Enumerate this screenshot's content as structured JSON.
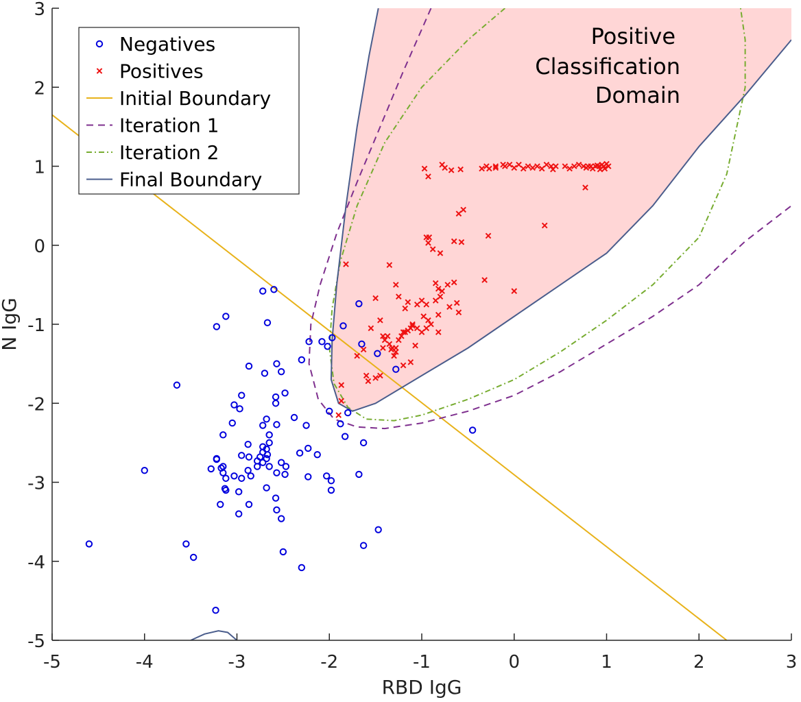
{
  "chart_data": {
    "type": "scatter",
    "xlabel": "RBD IgG",
    "ylabel": "N IgG",
    "xlim": [
      -5,
      3
    ],
    "ylim": [
      -5,
      3
    ],
    "x_ticks": [
      -5,
      -4,
      -3,
      -2,
      -1,
      0,
      1,
      2,
      3
    ],
    "y_ticks": [
      -5,
      -4,
      -3,
      -2,
      -1,
      0,
      1,
      2,
      3
    ],
    "grid": false,
    "legend_position": "top-left",
    "colors": {
      "negatives": "#0000dd",
      "positives": "#ee1111",
      "initial": "#e8b21a",
      "iteration1": "#7e2f8e",
      "iteration2": "#77ac30",
      "final": "#4a5d8c",
      "domain_fill": "#ffd6d6"
    },
    "annotation": [
      "Positive",
      "Classification",
      "Domain"
    ],
    "series": [
      {
        "name": "Negatives",
        "marker": "circle",
        "points": [
          [
            -4.6,
            -3.78
          ],
          [
            -4.0,
            -2.85
          ],
          [
            -3.65,
            -1.77
          ],
          [
            -3.55,
            -3.78
          ],
          [
            -3.47,
            -3.95
          ],
          [
            -3.23,
            -4.62
          ],
          [
            -3.22,
            -1.03
          ],
          [
            -3.12,
            -0.9
          ],
          [
            -2.72,
            -0.58
          ],
          [
            -2.6,
            -0.56
          ],
          [
            -2.67,
            -0.98
          ],
          [
            -3.15,
            -2.4
          ],
          [
            -3.05,
            -2.25
          ],
          [
            -3.03,
            -2.02
          ],
          [
            -2.97,
            -2.07
          ],
          [
            -2.95,
            -1.9
          ],
          [
            -2.87,
            -1.53
          ],
          [
            -2.7,
            -1.62
          ],
          [
            -2.57,
            -1.5
          ],
          [
            -2.52,
            -1.6
          ],
          [
            -2.58,
            -1.92
          ],
          [
            -2.58,
            -2.0
          ],
          [
            -2.48,
            -1.87
          ],
          [
            -2.68,
            -2.2
          ],
          [
            -2.72,
            -2.28
          ],
          [
            -2.57,
            -2.27
          ],
          [
            -2.65,
            -2.4
          ],
          [
            -2.88,
            -2.52
          ],
          [
            -2.72,
            -2.55
          ],
          [
            -2.68,
            -2.58
          ],
          [
            -2.72,
            -2.62
          ],
          [
            -2.68,
            -2.7
          ],
          [
            -2.72,
            -2.75
          ],
          [
            -2.78,
            -2.8
          ],
          [
            -2.75,
            -2.68
          ],
          [
            -2.67,
            -2.65
          ],
          [
            -2.65,
            -2.5
          ],
          [
            -2.95,
            -2.66
          ],
          [
            -2.87,
            -2.68
          ],
          [
            -2.88,
            -2.85
          ],
          [
            -2.85,
            -2.92
          ],
          [
            -2.95,
            -2.95
          ],
          [
            -3.03,
            -2.92
          ],
          [
            -3.12,
            -2.95
          ],
          [
            -3.15,
            -2.88
          ],
          [
            -3.15,
            -2.8
          ],
          [
            -3.17,
            -2.82
          ],
          [
            -3.22,
            -2.7
          ],
          [
            -3.28,
            -2.83
          ],
          [
            -3.12,
            -3.1
          ],
          [
            -3.13,
            -3.08
          ],
          [
            -2.98,
            -3.12
          ],
          [
            -2.68,
            -3.07
          ],
          [
            -2.58,
            -3.2
          ],
          [
            -2.87,
            -3.28
          ],
          [
            -3.18,
            -3.28
          ],
          [
            -2.98,
            -3.4
          ],
          [
            -2.57,
            -3.35
          ],
          [
            -2.52,
            -2.75
          ],
          [
            -2.57,
            -2.88
          ],
          [
            -2.47,
            -2.8
          ],
          [
            -2.48,
            -2.9
          ],
          [
            -2.38,
            -2.18
          ],
          [
            -2.32,
            -2.63
          ],
          [
            -2.25,
            -2.28
          ],
          [
            -2.23,
            -2.57
          ],
          [
            -2.23,
            -2.93
          ],
          [
            -2.13,
            -2.65
          ],
          [
            -2.03,
            -2.92
          ],
          [
            -1.98,
            -2.98
          ],
          [
            -1.98,
            -3.1
          ],
          [
            -2.0,
            -2.1
          ],
          [
            -1.88,
            -2.26
          ],
          [
            -1.83,
            -2.42
          ],
          [
            -1.68,
            -2.9
          ],
          [
            -1.63,
            -2.5
          ],
          [
            -1.63,
            -3.8
          ],
          [
            -1.47,
            -3.6
          ],
          [
            -2.5,
            -3.88
          ],
          [
            -2.52,
            -3.46
          ],
          [
            -2.3,
            -4.08
          ],
          [
            -2.3,
            -1.45
          ],
          [
            -2.22,
            -1.22
          ],
          [
            -2.08,
            -1.22
          ],
          [
            -2.02,
            -1.28
          ],
          [
            -1.97,
            -1.17
          ],
          [
            -1.85,
            -1.02
          ],
          [
            -1.68,
            -0.74
          ],
          [
            -1.65,
            -1.25
          ],
          [
            -1.48,
            -1.37
          ],
          [
            -1.28,
            -1.57
          ],
          [
            -1.8,
            -2.12
          ],
          [
            -0.45,
            -2.34
          ],
          [
            -3.22,
            -2.71
          ],
          [
            -2.78,
            -2.73
          ],
          [
            -2.65,
            -2.8
          ]
        ]
      },
      {
        "name": "Positives",
        "marker": "cross",
        "points": [
          [
            -1.82,
            -0.24
          ],
          [
            -1.87,
            -1.77
          ],
          [
            -1.87,
            -1.97
          ],
          [
            -1.9,
            -2.15
          ],
          [
            -1.7,
            -1.4
          ],
          [
            -1.63,
            -1.32
          ],
          [
            -1.6,
            -1.65
          ],
          [
            -1.55,
            -1.05
          ],
          [
            -1.58,
            -1.72
          ],
          [
            -1.5,
            -1.68
          ],
          [
            -1.45,
            -1.65
          ],
          [
            -1.45,
            -0.95
          ],
          [
            -1.5,
            -0.67
          ],
          [
            -1.42,
            -1.3
          ],
          [
            -1.4,
            -1.2
          ],
          [
            -1.37,
            -1.15
          ],
          [
            -1.35,
            -1.25
          ],
          [
            -1.32,
            -1.3
          ],
          [
            -1.3,
            -1.4
          ],
          [
            -1.28,
            -1.35
          ],
          [
            -1.25,
            -1.2
          ],
          [
            -1.22,
            -1.15
          ],
          [
            -1.2,
            -1.1
          ],
          [
            -1.18,
            -1.1
          ],
          [
            -1.15,
            -1.08
          ],
          [
            -1.12,
            -1.05
          ],
          [
            -1.1,
            -1.0
          ],
          [
            -1.18,
            -0.8
          ],
          [
            -1.25,
            -0.65
          ],
          [
            -1.28,
            -0.5
          ],
          [
            -1.35,
            -0.25
          ],
          [
            -1.15,
            -0.72
          ],
          [
            -1.05,
            -0.75
          ],
          [
            -1.0,
            -0.7
          ],
          [
            -0.95,
            -0.75
          ],
          [
            -0.98,
            -0.9
          ],
          [
            -0.93,
            -0.95
          ],
          [
            -0.9,
            -1.0
          ],
          [
            -0.95,
            -1.05
          ],
          [
            -1.0,
            -1.1
          ],
          [
            -0.82,
            -0.88
          ],
          [
            -0.85,
            -0.7
          ],
          [
            -0.8,
            -0.65
          ],
          [
            -0.82,
            -0.55
          ],
          [
            -0.85,
            -0.48
          ],
          [
            -0.78,
            -0.58
          ],
          [
            -0.72,
            -0.5
          ],
          [
            -0.65,
            -0.47
          ],
          [
            -0.7,
            -0.78
          ],
          [
            -0.6,
            -0.85
          ],
          [
            -0.62,
            -0.73
          ],
          [
            -0.82,
            -1.1
          ],
          [
            -0.88,
            -0.05
          ],
          [
            -0.8,
            -0.1
          ],
          [
            -0.95,
            0.1
          ],
          [
            -0.93,
            0.03
          ],
          [
            -0.65,
            0.05
          ],
          [
            -0.57,
            0.04
          ],
          [
            -1.07,
            -1.27
          ],
          [
            -1.12,
            -1.48
          ],
          [
            -1.2,
            -1.52
          ],
          [
            -1.1,
            -1.02
          ],
          [
            -0.92,
            0.1
          ],
          [
            -0.6,
            0.4
          ],
          [
            -0.55,
            0.45
          ],
          [
            -0.28,
            0.12
          ],
          [
            -0.32,
            -0.44
          ],
          [
            0.0,
            -0.58
          ],
          [
            0.33,
            0.25
          ],
          [
            -0.97,
            0.97
          ],
          [
            -0.93,
            0.87
          ],
          [
            -0.78,
            1.02
          ],
          [
            -0.75,
            0.98
          ],
          [
            -0.68,
            0.95
          ],
          [
            -0.58,
            0.96
          ],
          [
            -0.35,
            0.97
          ],
          [
            -0.3,
            1.0
          ],
          [
            -0.27,
            0.97
          ],
          [
            -0.2,
            1.0
          ],
          [
            -0.12,
            1.02
          ],
          [
            -0.1,
            1.0
          ],
          [
            -0.05,
            1.02
          ],
          [
            0.0,
            0.98
          ],
          [
            0.05,
            1.02
          ],
          [
            0.1,
            0.97
          ],
          [
            0.15,
            1.0
          ],
          [
            0.2,
            0.98
          ],
          [
            0.25,
            1.0
          ],
          [
            0.3,
            0.97
          ],
          [
            0.35,
            1.02
          ],
          [
            0.4,
            1.0
          ],
          [
            0.45,
            1.0
          ],
          [
            0.55,
            1.0
          ],
          [
            0.6,
            0.97
          ],
          [
            0.65,
            1.0
          ],
          [
            0.7,
            1.02
          ],
          [
            0.75,
            1.0
          ],
          [
            0.78,
            0.98
          ],
          [
            0.8,
            1.0
          ],
          [
            0.83,
            1.0
          ],
          [
            0.85,
            0.97
          ],
          [
            0.88,
            1.0
          ],
          [
            0.9,
            1.01
          ],
          [
            0.92,
            1.0
          ],
          [
            0.95,
            1.02
          ],
          [
            0.97,
            1.0
          ],
          [
            1.0,
            1.03
          ],
          [
            1.02,
            1.0
          ],
          [
            0.98,
            0.97
          ],
          [
            0.93,
            0.96
          ],
          [
            0.77,
            0.73
          ],
          [
            -0.2,
            0.98
          ],
          [
            0.42,
            0.96
          ],
          [
            -1.05,
            -1.05
          ],
          [
            -1.28,
            -1.3
          ],
          [
            -1.33,
            -1.32
          ],
          [
            -1.42,
            -1.15
          ]
        ]
      }
    ],
    "boundaries": [
      {
        "name": "Initial Boundary",
        "style": "solid",
        "points": [
          [
            -5.0,
            1.65
          ],
          [
            2.3,
            -5.0
          ]
        ]
      },
      {
        "name": "Iteration 1",
        "style": "dashed",
        "points": [
          [
            -0.9,
            3.0
          ],
          [
            -1.2,
            2.2
          ],
          [
            -1.45,
            1.5
          ],
          [
            -1.7,
            0.8
          ],
          [
            -1.92,
            0.15
          ],
          [
            -2.1,
            -0.5
          ],
          [
            -2.2,
            -1.0
          ],
          [
            -2.22,
            -1.5
          ],
          [
            -2.12,
            -1.95
          ],
          [
            -1.95,
            -2.2
          ],
          [
            -1.7,
            -2.3
          ],
          [
            -1.4,
            -2.32
          ],
          [
            -1.0,
            -2.25
          ],
          [
            -0.5,
            -2.1
          ],
          [
            0.0,
            -1.9
          ],
          [
            0.5,
            -1.6
          ],
          [
            1.0,
            -1.25
          ],
          [
            1.5,
            -0.9
          ],
          [
            2.0,
            -0.5
          ],
          [
            2.5,
            0.05
          ],
          [
            3.0,
            0.5
          ]
        ]
      },
      {
        "name": "Iteration 2",
        "style": "dashdot",
        "points": [
          [
            -0.1,
            3.0
          ],
          [
            -0.5,
            2.6
          ],
          [
            -1.0,
            2.0
          ],
          [
            -1.4,
            1.3
          ],
          [
            -1.7,
            0.5
          ],
          [
            -1.88,
            -0.2
          ],
          [
            -1.97,
            -0.8
          ],
          [
            -2.0,
            -1.3
          ],
          [
            -1.95,
            -1.75
          ],
          [
            -1.8,
            -2.05
          ],
          [
            -1.6,
            -2.2
          ],
          [
            -1.3,
            -2.22
          ],
          [
            -1.0,
            -2.15
          ],
          [
            -0.5,
            -1.95
          ],
          [
            0.0,
            -1.7
          ],
          [
            0.5,
            -1.35
          ],
          [
            1.0,
            -0.95
          ],
          [
            1.5,
            -0.5
          ],
          [
            2.0,
            0.1
          ],
          [
            2.3,
            0.9
          ],
          [
            2.5,
            2.0
          ],
          [
            2.5,
            2.6
          ],
          [
            2.45,
            3.0
          ]
        ]
      },
      {
        "name": "Final Boundary",
        "style": "solid",
        "points": [
          [
            -1.47,
            3.0
          ],
          [
            -1.57,
            2.4
          ],
          [
            -1.7,
            1.5
          ],
          [
            -1.82,
            0.5
          ],
          [
            -1.92,
            -0.5
          ],
          [
            -1.97,
            -1.2
          ],
          [
            -1.98,
            -1.7
          ],
          [
            -1.9,
            -2.0
          ],
          [
            -1.75,
            -2.1
          ],
          [
            -1.5,
            -2.0
          ],
          [
            -1.0,
            -1.65
          ],
          [
            -0.5,
            -1.3
          ],
          [
            0.0,
            -0.9
          ],
          [
            0.5,
            -0.5
          ],
          [
            1.0,
            -0.1
          ],
          [
            1.5,
            0.5
          ],
          [
            2.0,
            1.25
          ],
          [
            2.5,
            1.9
          ],
          [
            3.0,
            2.6
          ]
        ]
      }
    ],
    "domain_polygon": [
      [
        -1.47,
        3.0
      ],
      [
        -1.57,
        2.4
      ],
      [
        -1.7,
        1.5
      ],
      [
        -1.82,
        0.5
      ],
      [
        -1.92,
        -0.5
      ],
      [
        -1.97,
        -1.2
      ],
      [
        -1.98,
        -1.7
      ],
      [
        -1.9,
        -2.0
      ],
      [
        -1.75,
        -2.1
      ],
      [
        -1.5,
        -2.0
      ],
      [
        -1.0,
        -1.65
      ],
      [
        -0.5,
        -1.3
      ],
      [
        0.0,
        -0.9
      ],
      [
        0.5,
        -0.5
      ],
      [
        1.0,
        -0.1
      ],
      [
        1.5,
        0.5
      ],
      [
        2.0,
        1.25
      ],
      [
        2.5,
        1.9
      ],
      [
        3.0,
        2.6
      ],
      [
        3.0,
        3.0
      ]
    ],
    "extra_curve": {
      "name": "Final Boundary (lower lobe)",
      "points": [
        [
          -3.5,
          -5.0
        ],
        [
          -3.35,
          -4.92
        ],
        [
          -3.2,
          -4.88
        ],
        [
          -3.1,
          -4.9
        ],
        [
          -3.02,
          -4.98
        ],
        [
          -3.0,
          -5.0
        ]
      ]
    }
  }
}
